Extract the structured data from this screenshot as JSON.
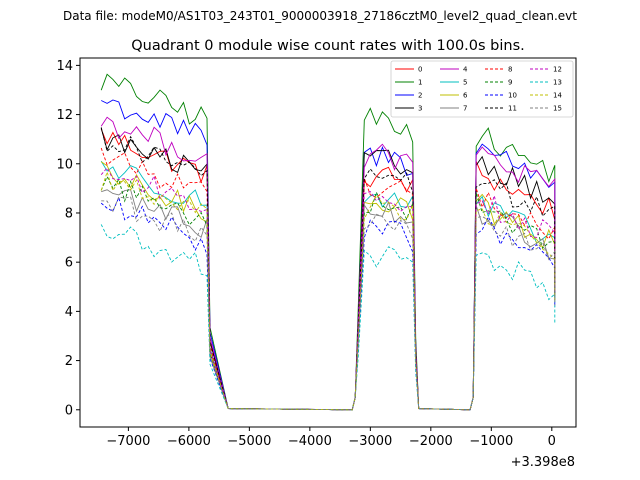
{
  "chart_data": {
    "type": "line",
    "suptitle": "Data file: modeM0/AS1T03_243T01_9000003918_27186cztM0_level2_quad_clean.evt",
    "title": "Quadrant 0 module wise count rates with 100.0s bins.",
    "xlabel": "",
    "ylabel": "",
    "x_offset_label": "+3.398e8",
    "xlim": [
      -7800,
      400
    ],
    "ylim": [
      -0.7,
      14.3
    ],
    "xticks": [
      -7000,
      -6000,
      -5000,
      -4000,
      -3000,
      -2000,
      -1000,
      0
    ],
    "xtick_labels": [
      "−7000",
      "−6000",
      "−5000",
      "−4000",
      "−3000",
      "−2000",
      "−1000",
      "0"
    ],
    "yticks": [
      0,
      2,
      4,
      6,
      8,
      10,
      12,
      14
    ],
    "ytick_labels": [
      "0",
      "2",
      "4",
      "6",
      "8",
      "10",
      "12",
      "14"
    ],
    "grid": false,
    "legend_location": "upper-right",
    "legend_columns": 4,
    "segments": [
      {
        "start": -7450,
        "end": -5700,
        "drop_end": -5350
      },
      {
        "start": -3200,
        "end": -2300,
        "drop_end": -2200
      },
      {
        "start": -1250,
        "end": 50,
        "drop_end": 50
      }
    ],
    "series": [
      {
        "name": "0",
        "color": "#ff0000",
        "dash": "solid",
        "levels": [
          11.2,
          9.4,
          9.7
        ]
      },
      {
        "name": "1",
        "color": "#008000",
        "dash": "solid",
        "levels": [
          13.4,
          11.7,
          11.2
        ]
      },
      {
        "name": "2",
        "color": "#0000ff",
        "dash": "solid",
        "levels": [
          12.6,
          10.2,
          10.8
        ]
      },
      {
        "name": "3",
        "color": "#000000",
        "dash": "solid",
        "levels": [
          11.1,
          10.0,
          10.2
        ]
      },
      {
        "name": "4",
        "color": "#bf00bf",
        "dash": "solid",
        "levels": [
          11.8,
          10.2,
          10.5
        ]
      },
      {
        "name": "5",
        "color": "#00bfbf",
        "dash": "solid",
        "levels": [
          10.0,
          8.6,
          8.4
        ]
      },
      {
        "name": "6",
        "color": "#bfbf00",
        "dash": "solid",
        "levels": [
          9.6,
          8.4,
          8.4
        ]
      },
      {
        "name": "7",
        "color": "#808080",
        "dash": "solid",
        "levels": [
          9.0,
          8.1,
          8.1
        ]
      },
      {
        "name": "8",
        "color": "#ff0000",
        "dash": "dashed",
        "levels": [
          10.4,
          9.0,
          8.7
        ]
      },
      {
        "name": "9",
        "color": "#008000",
        "dash": "dashed",
        "levels": [
          9.3,
          8.4,
          8.4
        ]
      },
      {
        "name": "10",
        "color": "#0000ff",
        "dash": "dashed",
        "levels": [
          8.4,
          7.2,
          7.6
        ]
      },
      {
        "name": "11",
        "color": "#000000",
        "dash": "dashed",
        "levels": [
          11.1,
          9.4,
          9.4
        ]
      },
      {
        "name": "12",
        "color": "#bf00bf",
        "dash": "dashed",
        "levels": [
          9.8,
          8.6,
          8.6
        ]
      },
      {
        "name": "13",
        "color": "#00bfbf",
        "dash": "dashed",
        "levels": [
          7.4,
          6.1,
          6.4
        ]
      },
      {
        "name": "14",
        "color": "#bfbf00",
        "dash": "dashed",
        "levels": [
          9.4,
          8.2,
          8.1
        ]
      },
      {
        "name": "15",
        "color": "#808080",
        "dash": "dashed",
        "levels": [
          8.6,
          7.6,
          7.7
        ]
      }
    ]
  }
}
